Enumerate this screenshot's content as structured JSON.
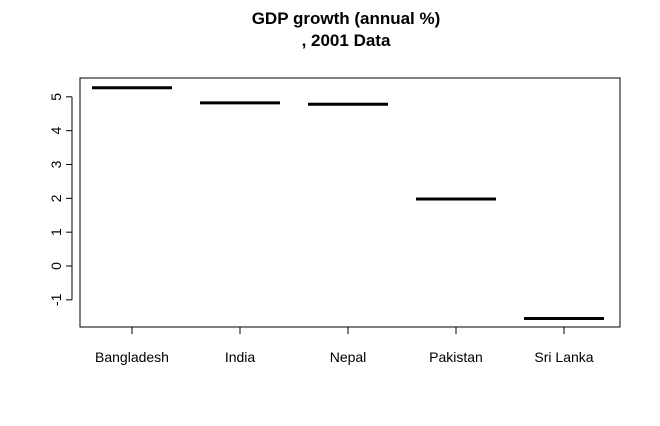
{
  "chart_data": {
    "type": "bar",
    "title": "GDP growth (annual %)",
    "subtitle": ", 2001 Data",
    "xlabel": "",
    "ylabel": "",
    "categories": [
      "Bangladesh",
      "India",
      "Nepal",
      "Pakistan",
      "Sri Lanka"
    ],
    "values": [
      5.27,
      4.82,
      4.78,
      1.98,
      -1.55
    ],
    "ylim": [
      -1.8,
      5.5
    ],
    "yticks": [
      "-1",
      "0",
      "1",
      "2",
      "3",
      "4",
      "5"
    ],
    "grid": false,
    "legend": "none",
    "colors": {
      "mark": "#000000",
      "axis": "#000000",
      "background": "#ffffff"
    }
  }
}
